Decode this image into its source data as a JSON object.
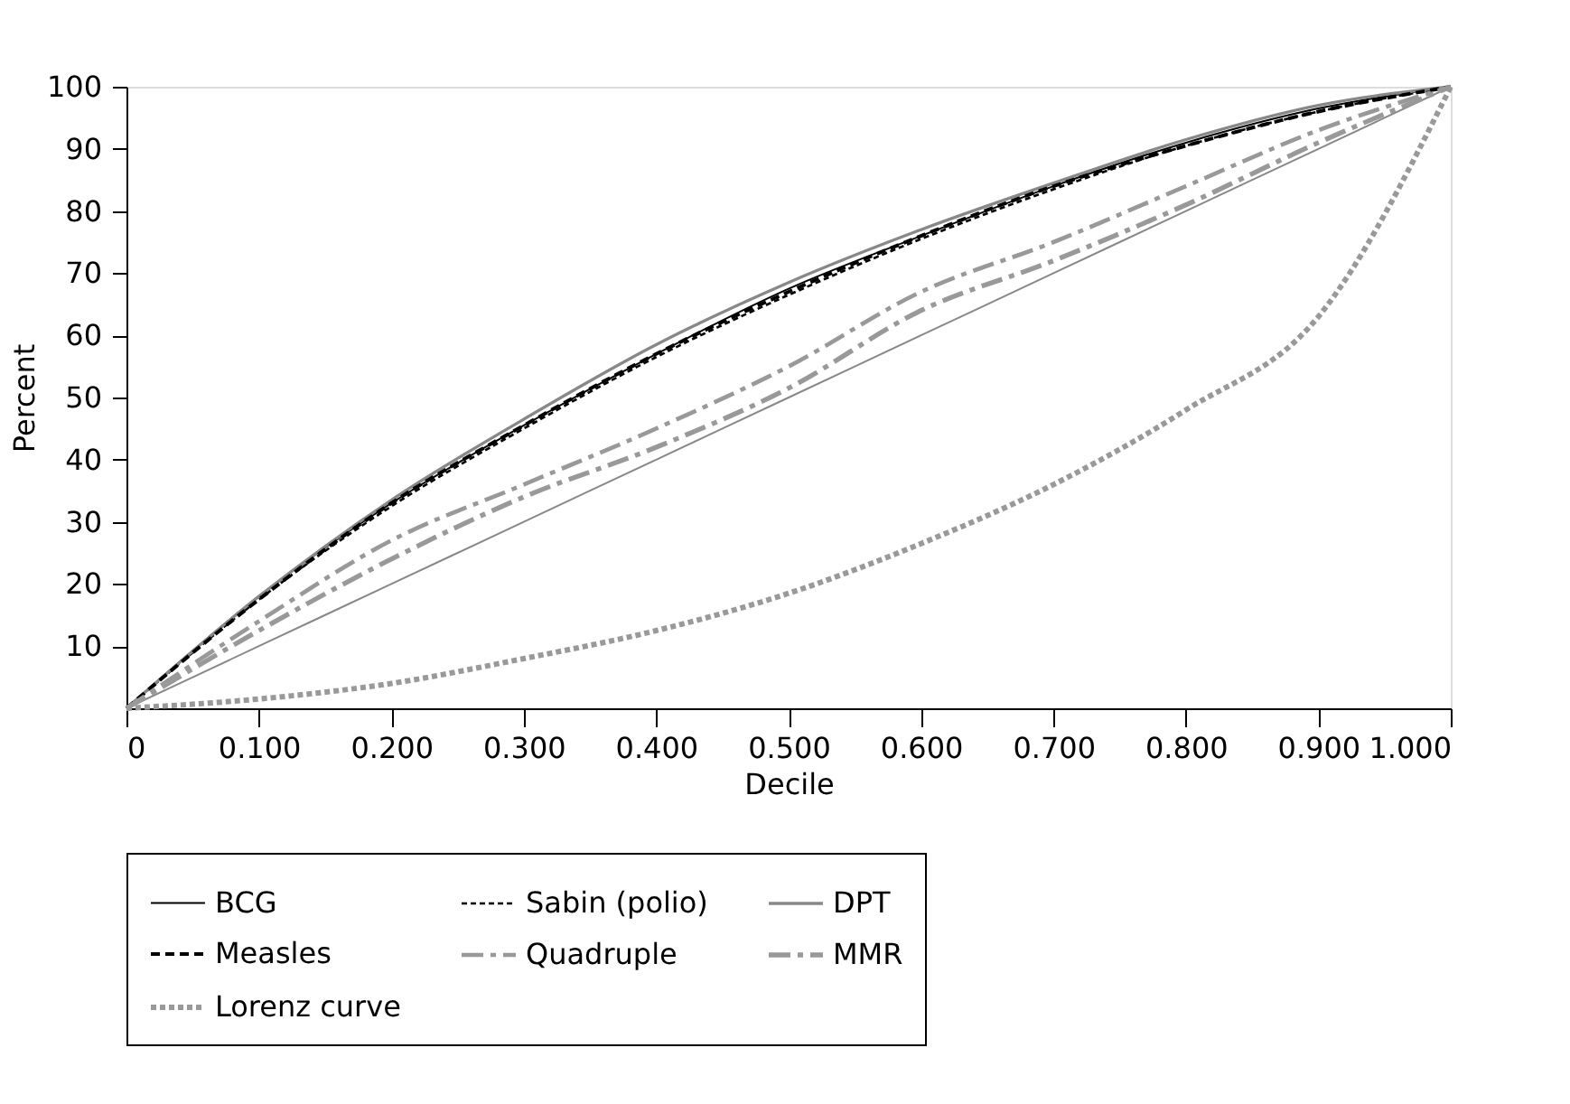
{
  "chart_data": {
    "type": "line",
    "xlabel": "Decile",
    "ylabel": "Percent",
    "x": [
      0,
      0.1,
      0.2,
      0.3,
      0.4,
      0.5,
      0.6,
      0.7,
      0.8,
      0.9,
      1.0
    ],
    "xlim": [
      0,
      1
    ],
    "xticks": [
      0,
      {
        "value": 0.1,
        "label": "0.100"
      },
      {
        "value": 0.2,
        "label": "0.200"
      },
      {
        "value": 0.3,
        "label": "0.300"
      },
      {
        "value": 0.4,
        "label": "0.400"
      },
      {
        "value": 0.5,
        "label": "0.500"
      },
      {
        "value": 0.6,
        "label": "0.600"
      },
      {
        "value": 0.7,
        "label": "0.700"
      },
      {
        "value": 0.8,
        "label": "0.800"
      },
      {
        "value": 0.9,
        "label": "0.900"
      },
      {
        "value": 1.0,
        "label": "1.000"
      }
    ],
    "ylim": [
      0,
      100
    ],
    "yticks": [
      10,
      20,
      30,
      40,
      50,
      60,
      70,
      80,
      90,
      100
    ],
    "grid": false,
    "legend": "bottom",
    "marker": "none",
    "series": [
      {
        "name": "BCG",
        "color": "#000000",
        "line_style": "solid",
        "values": [
          0,
          18,
          33,
          45.5,
          57,
          67.5,
          76,
          84,
          91,
          96.5,
          100
        ]
      },
      {
        "name": "Sabin (polio)",
        "color": "#000000",
        "line_style": "dotted",
        "values": [
          0,
          17.5,
          32.5,
          45,
          56.5,
          66.5,
          75.5,
          83.5,
          90.5,
          96,
          100
        ]
      },
      {
        "name": "DPT",
        "color": "#888888",
        "line_style": "solid",
        "values": [
          0,
          18,
          33.5,
          46.5,
          58.5,
          68.5,
          77,
          84.5,
          91.5,
          97,
          100
        ]
      },
      {
        "name": "Measles",
        "color": "#000000",
        "line_style": "dashed",
        "values": [
          0,
          17.5,
          33,
          45.5,
          57,
          67,
          76,
          84,
          90.5,
          96,
          100
        ]
      },
      {
        "name": "Quadruple",
        "color": "#999999",
        "line_style": "dashdot",
        "values": [
          0,
          14,
          27,
          36,
          45,
          55,
          67,
          75,
          84,
          93,
          100
        ]
      },
      {
        "name": "MMR",
        "color": "#999999",
        "line_style": "dashdot",
        "values": [
          0,
          12.5,
          24,
          34,
          42,
          51.5,
          64,
          72,
          81,
          91,
          100
        ]
      },
      {
        "name": "Lorenz curve",
        "color": "#999999",
        "line_style": "dotted",
        "values": [
          0,
          1.5,
          4,
          8,
          12.5,
          18.5,
          26.5,
          36,
          48,
          63,
          100
        ]
      },
      {
        "color": "#888888",
        "line_style": "solid",
        "values": [
          0,
          10,
          20,
          30,
          40,
          50,
          60,
          70,
          80,
          90,
          100
        ]
      }
    ]
  }
}
